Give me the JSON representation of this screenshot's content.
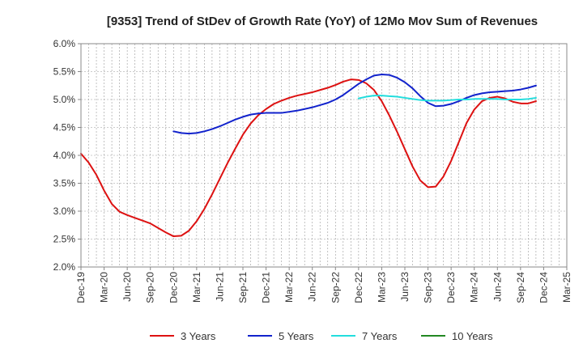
{
  "chart_data": {
    "type": "line",
    "title": "[9353]  Trend of StDev of Growth Rate (YoY) of 12Mo Mov Sum of Revenues",
    "xlabel": "",
    "ylabel": "",
    "x_tick_labels": [
      "Dec-19",
      "Mar-20",
      "Jun-20",
      "Sep-20",
      "Dec-20",
      "Mar-21",
      "Jun-21",
      "Sep-21",
      "Dec-21",
      "Mar-22",
      "Jun-22",
      "Sep-22",
      "Dec-22",
      "Mar-23",
      "Jun-23",
      "Sep-23",
      "Dec-23",
      "Mar-24",
      "Jun-24",
      "Sep-24",
      "Dec-24",
      "Mar-25"
    ],
    "y_tick_labels": [
      "2.0%",
      "2.5%",
      "3.0%",
      "3.5%",
      "4.0%",
      "4.5%",
      "5.0%",
      "5.5%",
      "6.0%"
    ],
    "y_ticks": [
      2.0,
      2.5,
      3.0,
      3.5,
      4.0,
      4.5,
      5.0,
      5.5,
      6.0
    ],
    "ylim": [
      2.0,
      6.0
    ],
    "x_range_months": [
      0,
      63
    ],
    "grid": true,
    "legend_position": "bottom",
    "series": [
      {
        "name": "3 Years",
        "color": "#dd1111",
        "points": [
          [
            0,
            4.03
          ],
          [
            1,
            3.87
          ],
          [
            2,
            3.65
          ],
          [
            3,
            3.37
          ],
          [
            4,
            3.13
          ],
          [
            5,
            2.99
          ],
          [
            6,
            2.93
          ],
          [
            7,
            2.88
          ],
          [
            8,
            2.83
          ],
          [
            9,
            2.78
          ],
          [
            10,
            2.7
          ],
          [
            11,
            2.62
          ],
          [
            12,
            2.55
          ],
          [
            13,
            2.56
          ],
          [
            14,
            2.65
          ],
          [
            15,
            2.82
          ],
          [
            16,
            3.04
          ],
          [
            17,
            3.3
          ],
          [
            18,
            3.58
          ],
          [
            19,
            3.86
          ],
          [
            20,
            4.12
          ],
          [
            21,
            4.37
          ],
          [
            22,
            4.57
          ],
          [
            23,
            4.72
          ],
          [
            24,
            4.83
          ],
          [
            25,
            4.92
          ],
          [
            26,
            4.98
          ],
          [
            27,
            5.03
          ],
          [
            28,
            5.07
          ],
          [
            29,
            5.1
          ],
          [
            30,
            5.13
          ],
          [
            31,
            5.17
          ],
          [
            32,
            5.21
          ],
          [
            33,
            5.26
          ],
          [
            34,
            5.32
          ],
          [
            35,
            5.36
          ],
          [
            36,
            5.35
          ],
          [
            37,
            5.29
          ],
          [
            38,
            5.17
          ],
          [
            39,
            4.97
          ],
          [
            40,
            4.71
          ],
          [
            41,
            4.42
          ],
          [
            42,
            4.11
          ],
          [
            43,
            3.8
          ],
          [
            44,
            3.55
          ],
          [
            45,
            3.43
          ],
          [
            46,
            3.44
          ],
          [
            47,
            3.62
          ],
          [
            48,
            3.9
          ],
          [
            49,
            4.24
          ],
          [
            50,
            4.58
          ],
          [
            51,
            4.82
          ],
          [
            52,
            4.97
          ],
          [
            53,
            5.03
          ],
          [
            54,
            5.05
          ],
          [
            55,
            5.02
          ],
          [
            56,
            4.96
          ],
          [
            57,
            4.93
          ],
          [
            58,
            4.93
          ],
          [
            59,
            4.97
          ]
        ]
      },
      {
        "name": "5 Years",
        "color": "#1122cc",
        "points": [
          [
            12,
            4.43
          ],
          [
            13,
            4.4
          ],
          [
            14,
            4.39
          ],
          [
            15,
            4.4
          ],
          [
            16,
            4.43
          ],
          [
            17,
            4.47
          ],
          [
            18,
            4.52
          ],
          [
            19,
            4.58
          ],
          [
            20,
            4.64
          ],
          [
            21,
            4.69
          ],
          [
            22,
            4.73
          ],
          [
            23,
            4.75
          ],
          [
            24,
            4.76
          ],
          [
            25,
            4.76
          ],
          [
            26,
            4.76
          ],
          [
            27,
            4.78
          ],
          [
            28,
            4.8
          ],
          [
            29,
            4.83
          ],
          [
            30,
            4.86
          ],
          [
            31,
            4.9
          ],
          [
            32,
            4.94
          ],
          [
            33,
            5.0
          ],
          [
            34,
            5.08
          ],
          [
            35,
            5.18
          ],
          [
            36,
            5.28
          ],
          [
            37,
            5.36
          ],
          [
            38,
            5.43
          ],
          [
            39,
            5.45
          ],
          [
            40,
            5.44
          ],
          [
            41,
            5.39
          ],
          [
            42,
            5.31
          ],
          [
            43,
            5.2
          ],
          [
            44,
            5.06
          ],
          [
            45,
            4.94
          ],
          [
            46,
            4.88
          ],
          [
            47,
            4.89
          ],
          [
            48,
            4.92
          ],
          [
            49,
            4.97
          ],
          [
            50,
            5.03
          ],
          [
            51,
            5.08
          ],
          [
            52,
            5.11
          ],
          [
            53,
            5.13
          ],
          [
            54,
            5.14
          ],
          [
            55,
            5.15
          ],
          [
            56,
            5.16
          ],
          [
            57,
            5.18
          ],
          [
            58,
            5.21
          ],
          [
            59,
            5.25
          ]
        ]
      },
      {
        "name": "7 Years",
        "color": "#22dddd",
        "points": [
          [
            36,
            5.02
          ],
          [
            37,
            5.05
          ],
          [
            38,
            5.07
          ],
          [
            39,
            5.07
          ],
          [
            40,
            5.06
          ],
          [
            41,
            5.05
          ],
          [
            42,
            5.03
          ],
          [
            43,
            5.01
          ],
          [
            44,
            4.99
          ],
          [
            45,
            4.98
          ],
          [
            46,
            4.98
          ],
          [
            47,
            4.98
          ],
          [
            48,
            4.99
          ],
          [
            49,
            5.0
          ],
          [
            50,
            5.0
          ],
          [
            51,
            5.01
          ],
          [
            52,
            5.01
          ],
          [
            53,
            5.01
          ],
          [
            54,
            5.01
          ],
          [
            55,
            5.0
          ],
          [
            56,
            5.0
          ],
          [
            57,
            5.0
          ],
          [
            58,
            5.01
          ],
          [
            59,
            5.03
          ]
        ]
      },
      {
        "name": "10 Years",
        "color": "#228822",
        "points": []
      }
    ]
  }
}
